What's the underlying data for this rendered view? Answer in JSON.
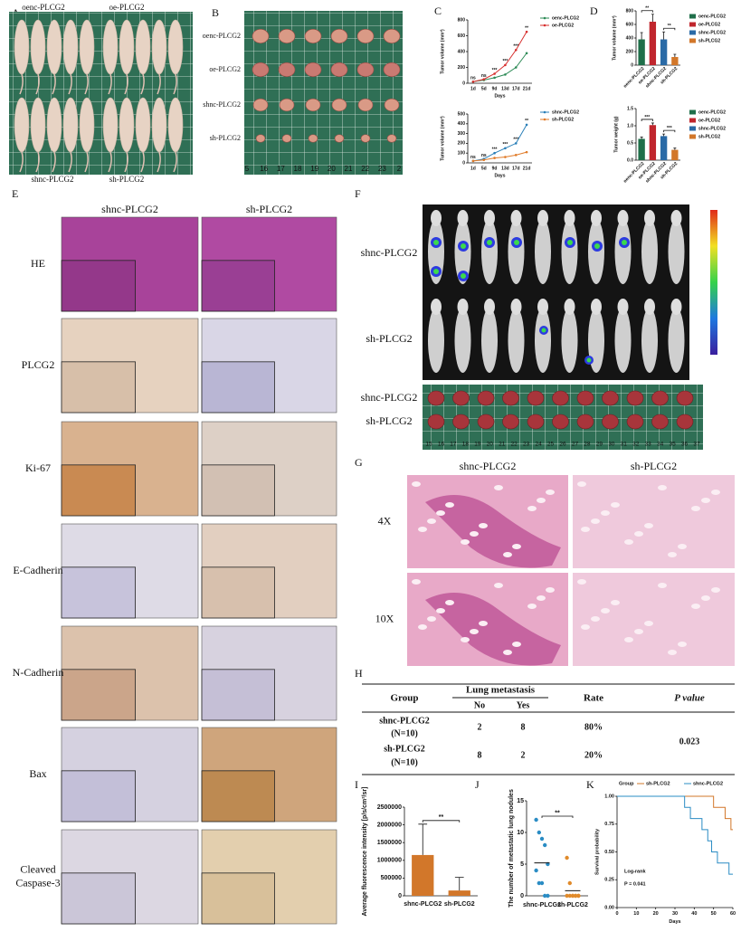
{
  "panel_letters": [
    "A",
    "B",
    "C",
    "D",
    "E",
    "F",
    "G",
    "H",
    "I",
    "J",
    "K"
  ],
  "panel_a": {
    "labels": [
      "oenc-PLCG2",
      "oe-PLCG2",
      "shnc-PLCG2",
      "sh-PLCG2"
    ]
  },
  "panel_b": {
    "row_labels": [
      "oenc-PLCG2",
      "oe-PLCG2",
      "shnc-PLCG2",
      "sh-PLCG2"
    ],
    "ruler": [
      "5",
      "16",
      "17",
      "18",
      "19",
      "20",
      "21",
      "22",
      "23",
      "2"
    ]
  },
  "panel_e": {
    "columns": [
      "shnc-PLCG2",
      "sh-PLCG2"
    ],
    "rows": [
      [
        "HE"
      ],
      [
        "PLCG2"
      ],
      [
        "Ki-67"
      ],
      [
        "E-Cadherin"
      ],
      [
        "N-Cadherin"
      ],
      [
        "Bax"
      ],
      [
        "Cleaved",
        "Caspase-3"
      ]
    ]
  },
  "panel_f": {
    "rows": [
      "shnc-PLCG2",
      "sh-PLCG2"
    ],
    "lung_rows": [
      "shnc-PLCG2",
      "sh-PLCG2"
    ],
    "ruler": [
      "15",
      "16",
      "17",
      "18",
      "19",
      "20",
      "21",
      "22",
      "23",
      "24",
      "25",
      "26",
      "27",
      "28",
      "29",
      "30",
      "31",
      "32",
      "33",
      "34",
      "35",
      "36",
      "37"
    ]
  },
  "panel_g": {
    "columns": [
      "shnc-PLCG2",
      "sh-PLCG2"
    ],
    "rows": [
      "4X",
      "10X"
    ]
  },
  "table": {
    "group_header": "Group",
    "metastasis_header": "Lung metastasis",
    "no_header": "No",
    "yes_header": "Yes",
    "rate_header": "Rate",
    "p_header": "P value",
    "rows": [
      {
        "group": "shnc-PLCG2",
        "n": "(N=10)",
        "no": 2,
        "yes": 8,
        "rate": "80%"
      },
      {
        "group": "sh-PLCG2",
        "n": "(N=10)",
        "no": 8,
        "yes": 2,
        "rate": "20%"
      }
    ],
    "p_value": 0.023
  },
  "chart_data": [
    {
      "type": "line",
      "ylabel": "Tumor volume (mm³)",
      "xlabel": "Days",
      "categories": [
        "1d",
        "5d",
        "9d",
        "13d",
        "17d",
        "21d"
      ],
      "ylim": [
        0,
        800
      ],
      "yticks": [
        0,
        200,
        400,
        600,
        800
      ],
      "series": [
        {
          "name": "oenc-PLCG2",
          "color": "#2e8b57",
          "values": [
            20,
            40,
            70,
            110,
            200,
            380
          ]
        },
        {
          "name": "oe-PLCG2",
          "color": "#d7302f",
          "values": [
            20,
            50,
            120,
            230,
            420,
            650
          ]
        }
      ],
      "annotations": [
        "ns",
        "ns",
        "***",
        "***",
        "***",
        "**"
      ]
    },
    {
      "type": "line",
      "ylabel": "Tumor volume (mm³)",
      "xlabel": "Days",
      "categories": [
        "1d",
        "5d",
        "9d",
        "13d",
        "17d",
        "21d"
      ],
      "ylim": [
        0,
        500
      ],
      "yticks": [
        0,
        100,
        200,
        300,
        400,
        500
      ],
      "series": [
        {
          "name": "shnc-PLCG2",
          "color": "#2a7fb8",
          "values": [
            20,
            40,
            100,
            150,
            200,
            390
          ]
        },
        {
          "name": "sh-PLCG2",
          "color": "#e07b29",
          "values": [
            20,
            30,
            50,
            60,
            80,
            110
          ]
        }
      ],
      "annotations": [
        "ns",
        "ns",
        "***",
        "***",
        "***",
        "**"
      ]
    },
    {
      "type": "bar",
      "ylabel": "Tumor volume (mm³)",
      "categories": [
        "oenc-PLCG2",
        "oe-PLCG2",
        "shnc-PLCG2",
        "sh-PLCG2"
      ],
      "values": [
        380,
        640,
        380,
        120
      ],
      "errors": [
        100,
        110,
        110,
        40
      ],
      "colors": [
        "#1f6f4a",
        "#c0262d",
        "#2a6aa6",
        "#d2772a"
      ],
      "ylim": [
        0,
        800
      ],
      "yticks": [
        0,
        200,
        400,
        600,
        800
      ],
      "legend": true,
      "label_rotation": -45,
      "annotations": [
        "**",
        "**"
      ]
    },
    {
      "type": "bar",
      "ylabel": "Tumor weight (g)",
      "categories": [
        "oenc-PLCG2",
        "oe-PLCG2",
        "shnc-PLCG2",
        "sh-PLCG2"
      ],
      "values": [
        0.62,
        1.02,
        0.7,
        0.3
      ],
      "errors": [
        0.05,
        0.06,
        0.06,
        0.05
      ],
      "colors": [
        "#1f6f4a",
        "#c0262d",
        "#2a6aa6",
        "#d2772a"
      ],
      "ylim": [
        0,
        1.5
      ],
      "yticks": [
        {
          "value": 0,
          "label": "0.0"
        },
        0.5,
        {
          "value": 1,
          "label": "1.0"
        },
        1.5
      ],
      "legend": true,
      "label_rotation": -45,
      "annotations": [
        "***",
        "***"
      ]
    },
    {
      "type": "bar",
      "ylabel": "Average fluorescence intensity [p/s/cm²/sr]",
      "categories": [
        "shnc-PLCG2",
        "sh-PLCG2"
      ],
      "values": [
        1150000,
        150000
      ],
      "errors": [
        870000,
        370000
      ],
      "colors": [
        "#d2772a",
        "#d2772a"
      ],
      "ylim": [
        0,
        2500000
      ],
      "yticks": [
        0,
        500000,
        1000000,
        1500000,
        2000000,
        2500000
      ],
      "annotations": [
        "**"
      ]
    },
    {
      "type": "strip",
      "ylabel": "The number of metastatic lung nodules",
      "categories": [
        "shnc-PLCG2",
        "sh-PLCG2"
      ],
      "values": [
        [
          12,
          10,
          9,
          8,
          5,
          4,
          2,
          2,
          0,
          0
        ],
        [
          6,
          2,
          0,
          0,
          0,
          0,
          0,
          0,
          0,
          0
        ]
      ],
      "means": [
        5.2,
        0.8
      ],
      "colors": [
        "#2a8cc4",
        "#e08a2a"
      ],
      "ylim": [
        0,
        15
      ],
      "yticks": [
        0,
        5,
        10,
        15
      ],
      "annotations": [
        "**"
      ]
    },
    {
      "type": "step",
      "xlabel": "Days",
      "ylabel": "Survival probability",
      "legend_title": "Group",
      "xlim": [
        0,
        60
      ],
      "xticks": [
        0,
        10,
        20,
        30,
        40,
        50,
        60
      ],
      "ylim": [
        0,
        1
      ],
      "yticks": [
        {
          "value": 0,
          "label": "0.00"
        },
        0.25,
        {
          "value": 0.5,
          "label": "0.50"
        },
        0.75,
        {
          "value": 1,
          "label": "1.00"
        }
      ],
      "series": [
        {
          "name": "sh-PLCG2",
          "color": "#d2772a",
          "x": [
            0,
            50,
            56,
            59,
            60
          ],
          "values": [
            1,
            0.9,
            0.8,
            0.7,
            0.7
          ]
        },
        {
          "name": "shnc-PLCG2",
          "color": "#2a8cc4",
          "x": [
            0,
            35,
            38,
            44,
            47,
            49,
            52,
            58,
            60
          ],
          "values": [
            1,
            0.9,
            0.8,
            0.7,
            0.6,
            0.5,
            0.4,
            0.3,
            0.3
          ]
        }
      ],
      "annotations": [
        "Log-rank",
        "P = 0.041"
      ]
    }
  ]
}
